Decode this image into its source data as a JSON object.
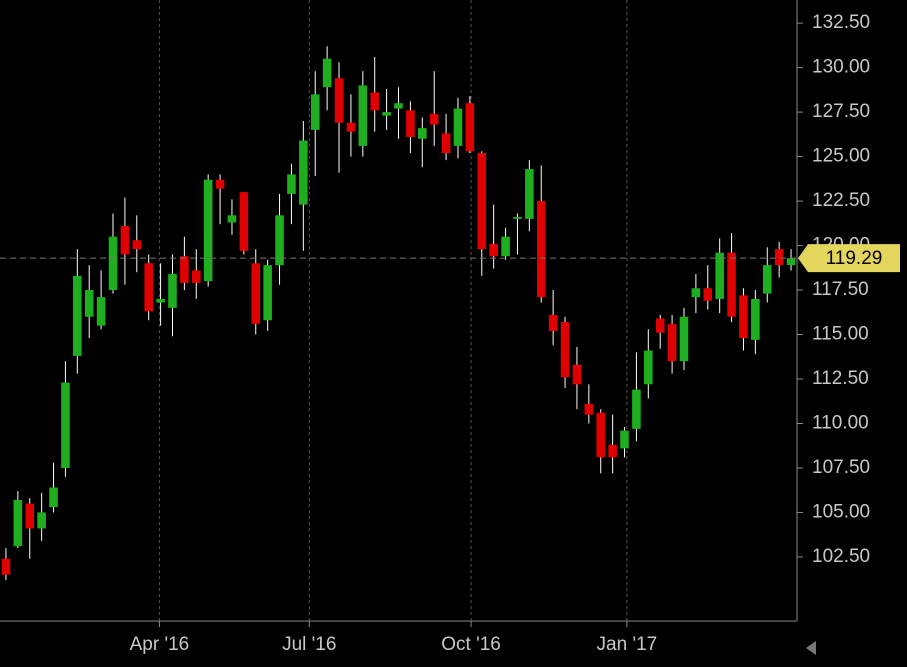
{
  "chart_data": {
    "type": "candlestick",
    "x": [
      0,
      1,
      2,
      3,
      4,
      5,
      6,
      7,
      8,
      9,
      10,
      11,
      12,
      13,
      14,
      15,
      16,
      17,
      18,
      19,
      20,
      21,
      22,
      23,
      24,
      25,
      26,
      27,
      28,
      29,
      30,
      31,
      32,
      33,
      34,
      35,
      36,
      37,
      38,
      39,
      40,
      41,
      42,
      43,
      44,
      45,
      46,
      47,
      48,
      49,
      50,
      51,
      52,
      53,
      54,
      55,
      56,
      57,
      58,
      59,
      60,
      61,
      62,
      63,
      64,
      65,
      66
    ],
    "open": [
      102.4,
      103.1,
      105.5,
      104.1,
      105.3,
      107.5,
      113.8,
      116.0,
      115.5,
      117.5,
      121.1,
      120.3,
      119.0,
      116.8,
      116.5,
      119.4,
      118.6,
      118.0,
      123.7,
      121.3,
      123.0,
      119.0,
      115.8,
      118.9,
      122.9,
      122.3,
      126.5,
      128.9,
      129.4,
      126.9,
      125.6,
      128.6,
      127.3,
      127.7,
      127.6,
      126.0,
      127.4,
      126.3,
      125.6,
      128.0,
      125.2,
      120.1,
      119.4,
      121.5,
      121.5,
      122.5,
      116.1,
      115.7,
      113.3,
      111.1,
      110.6,
      108.8,
      108.6,
      109.7,
      112.2,
      115.9,
      115.6,
      113.5,
      117.1,
      117.6,
      117.0,
      119.6,
      117.2,
      114.7,
      117.3,
      119.8,
      118.9
    ],
    "high": [
      103.0,
      106.2,
      105.8,
      106.1,
      107.8,
      113.5,
      119.8,
      118.9,
      118.6,
      121.8,
      122.7,
      121.7,
      119.5,
      119.0,
      119.5,
      120.5,
      119.8,
      124.0,
      124.0,
      122.6,
      123.0,
      119.8,
      119.2,
      122.9,
      124.6,
      127.0,
      129.8,
      131.2,
      130.3,
      128.5,
      129.8,
      130.6,
      128.8,
      128.9,
      128.1,
      127.2,
      129.8,
      127.4,
      128.3,
      128.4,
      125.3,
      122.3,
      121.0,
      121.8,
      124.8,
      124.5,
      117.5,
      116.0,
      114.3,
      112.2,
      110.8,
      110.5,
      109.8,
      114.0,
      115.3,
      116.1,
      116.1,
      116.5,
      118.4,
      118.9,
      120.4,
      120.7,
      117.6,
      117.5,
      119.9,
      120.2,
      119.8
    ],
    "low": [
      101.2,
      103.0,
      102.4,
      103.4,
      105.0,
      107.0,
      112.8,
      114.8,
      115.3,
      117.3,
      117.8,
      118.5,
      115.8,
      115.5,
      114.9,
      117.5,
      117.0,
      117.7,
      121.2,
      120.6,
      119.5,
      115.0,
      115.2,
      117.8,
      121.2,
      119.7,
      123.9,
      127.6,
      124.1,
      125.0,
      125.0,
      126.4,
      126.5,
      126.0,
      125.2,
      124.4,
      125.6,
      124.8,
      124.9,
      125.2,
      118.3,
      118.7,
      119.2,
      119.5,
      120.8,
      116.8,
      114.4,
      112.0,
      110.8,
      110.0,
      107.2,
      107.2,
      108.1,
      109.0,
      111.4,
      114.2,
      112.8,
      113.0,
      116.2,
      116.4,
      116.2,
      115.7,
      114.1,
      113.9,
      116.8,
      118.2,
      118.6
    ],
    "close": [
      101.5,
      105.7,
      104.1,
      105.0,
      106.4,
      112.3,
      118.3,
      117.5,
      117.1,
      120.5,
      119.5,
      119.8,
      116.3,
      117.0,
      118.4,
      117.9,
      117.9,
      123.7,
      123.2,
      121.7,
      119.7,
      115.6,
      118.9,
      121.7,
      124.0,
      125.9,
      128.5,
      130.5,
      126.9,
      126.4,
      129.0,
      127.6,
      127.5,
      128.0,
      126.1,
      126.6,
      126.8,
      125.2,
      127.7,
      125.3,
      119.8,
      119.4,
      120.5,
      121.6,
      124.3,
      117.1,
      115.2,
      112.6,
      112.2,
      110.5,
      108.1,
      108.1,
      109.6,
      111.9,
      114.1,
      115.1,
      113.5,
      116.0,
      117.6,
      116.9,
      119.6,
      116.0,
      114.8,
      117.0,
      118.9,
      118.9,
      119.29
    ],
    "up_color": "#1fae1f",
    "down_color": "#e00000",
    "xlim": [
      -0.5,
      66.5
    ],
    "xticks": [
      {
        "value": 12.9,
        "label": "Apr '16"
      },
      {
        "value": 25.5,
        "label": "Jul '16"
      },
      {
        "value": 39.1,
        "label": "Oct '16"
      },
      {
        "value": 52.2,
        "label": "Jan '17"
      }
    ],
    "ylim": [
      98.9,
      133.8
    ],
    "yticks": [
      {
        "value": 102.5,
        "label": "102.50"
      },
      {
        "value": 105,
        "label": "105.00"
      },
      {
        "value": 107.5,
        "label": "107.50"
      },
      {
        "value": 110,
        "label": "110.00"
      },
      {
        "value": 112.5,
        "label": "112.50"
      },
      {
        "value": 115,
        "label": "115.00"
      },
      {
        "value": 117.5,
        "label": "117.50"
      },
      {
        "value": 120,
        "label": "120.00"
      },
      {
        "value": 122.5,
        "label": "122.50"
      },
      {
        "value": 125,
        "label": "125.00"
      },
      {
        "value": 127.5,
        "label": "127.50"
      },
      {
        "value": 130,
        "label": "130.00"
      },
      {
        "value": 132.5,
        "label": "132.50"
      }
    ],
    "grid": true
  }
}
